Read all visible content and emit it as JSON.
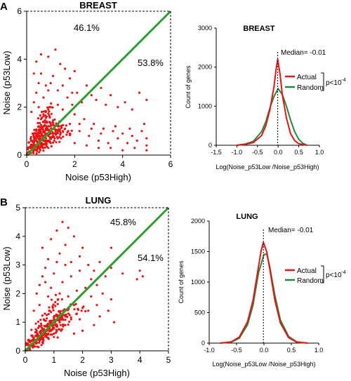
{
  "panels": {
    "A": {
      "letter": "A",
      "scatter": {
        "title": "BREAST",
        "pct_above": "46.1%",
        "pct_below": "53.8%"
      },
      "hist": {
        "median_label": "Median= -0.01",
        "p_value_text": "p<10",
        "p_value_exp": "-4"
      }
    },
    "B": {
      "letter": "B",
      "scatter": {
        "title": "LUNG",
        "pct_above": "45.8%",
        "pct_below": "54.1%"
      },
      "hist": {
        "median_label": "Median= -0.01",
        "p_value_text": "p<10",
        "p_value_exp": "-4"
      }
    }
  },
  "colors": {
    "points": "#ee1111",
    "diagonal": "#2aa02a",
    "actual": "#ee1111",
    "random": "#1f8a3a",
    "median_line": "#000000"
  },
  "chart_data": [
    {
      "type": "scatter",
      "title": "BREAST",
      "xlabel": "Noise (p53High)",
      "ylabel": "Noise (p53Low)",
      "xlim": [
        0,
        6
      ],
      "ylim": [
        0,
        6
      ],
      "xticks": [
        "0",
        "2",
        "4",
        "6"
      ],
      "yticks": [
        "0",
        "2",
        "4",
        "6"
      ],
      "annotations": [
        "46.1%",
        "53.8%"
      ],
      "reference_line": "y = x",
      "point_color": "#ee1111",
      "dense_cluster_points": [
        [
          0.05,
          0.1
        ],
        [
          0.1,
          0.15
        ],
        [
          0.15,
          0.1
        ],
        [
          0.2,
          0.25
        ],
        [
          0.25,
          0.3
        ],
        [
          0.3,
          0.2
        ],
        [
          0.35,
          0.4
        ],
        [
          0.4,
          0.35
        ],
        [
          0.45,
          0.5
        ],
        [
          0.5,
          0.45
        ],
        [
          0.55,
          0.6
        ],
        [
          0.6,
          0.5
        ],
        [
          0.65,
          0.7
        ],
        [
          0.7,
          0.6
        ],
        [
          0.75,
          0.8
        ],
        [
          0.8,
          0.7
        ],
        [
          0.85,
          0.9
        ],
        [
          0.9,
          0.8
        ],
        [
          0.95,
          1.0
        ],
        [
          1.0,
          0.9
        ],
        [
          0.3,
          0.5
        ],
        [
          0.5,
          0.8
        ],
        [
          0.6,
          0.9
        ],
        [
          0.4,
          0.7
        ],
        [
          0.7,
          1.0
        ],
        [
          0.8,
          1.1
        ],
        [
          0.9,
          1.2
        ],
        [
          1.0,
          1.3
        ],
        [
          1.1,
          1.1
        ],
        [
          1.2,
          1.0
        ],
        [
          0.2,
          0.4
        ],
        [
          0.5,
          0.3
        ],
        [
          0.6,
          0.4
        ],
        [
          0.7,
          0.45
        ],
        [
          0.8,
          0.5
        ],
        [
          0.9,
          0.6
        ],
        [
          1.0,
          0.7
        ],
        [
          1.1,
          0.8
        ],
        [
          1.2,
          0.9
        ],
        [
          1.3,
          1.0
        ],
        [
          0.35,
          0.6
        ],
        [
          0.45,
          0.75
        ],
        [
          0.55,
          0.95
        ],
        [
          0.65,
          1.1
        ],
        [
          0.75,
          1.25
        ],
        [
          0.85,
          1.35
        ],
        [
          0.4,
          0.2
        ],
        [
          0.55,
          0.25
        ],
        [
          0.7,
          0.3
        ],
        [
          0.85,
          0.35
        ],
        [
          1.0,
          0.5
        ],
        [
          1.15,
          0.6
        ],
        [
          1.3,
          0.7
        ],
        [
          1.4,
          0.85
        ],
        [
          1.5,
          1.0
        ],
        [
          0.25,
          0.55
        ],
        [
          0.3,
          0.75
        ],
        [
          0.5,
          1.05
        ],
        [
          0.6,
          1.25
        ],
        [
          0.7,
          1.4
        ],
        [
          0.8,
          1.55
        ],
        [
          0.95,
          1.6
        ],
        [
          1.1,
          1.45
        ],
        [
          1.25,
          1.3
        ],
        [
          1.35,
          1.2
        ],
        [
          1.45,
          1.15
        ],
        [
          1.6,
          1.1
        ],
        [
          1.7,
          0.95
        ],
        [
          1.8,
          0.9
        ],
        [
          0.15,
          0.3
        ],
        [
          0.2,
          0.6
        ],
        [
          0.3,
          0.9
        ],
        [
          0.4,
          1.0
        ],
        [
          0.5,
          1.2
        ],
        [
          0.6,
          1.5
        ],
        [
          0.7,
          1.7
        ],
        [
          0.8,
          1.8
        ],
        [
          0.9,
          1.9
        ],
        [
          1.0,
          2.0
        ]
      ],
      "spread_points": [
        [
          0.2,
          1.8
        ],
        [
          0.3,
          2.2
        ],
        [
          0.4,
          2.6
        ],
        [
          0.5,
          3.0
        ],
        [
          0.6,
          3.4
        ],
        [
          0.4,
          3.9
        ],
        [
          0.6,
          4.2
        ],
        [
          0.9,
          4.1
        ],
        [
          1.2,
          4.4
        ],
        [
          1.4,
          3.8
        ],
        [
          1.6,
          3.6
        ],
        [
          1.1,
          3.3
        ],
        [
          0.8,
          2.9
        ],
        [
          1.3,
          2.7
        ],
        [
          1.7,
          2.4
        ],
        [
          1.9,
          2.1
        ],
        [
          2.1,
          2.6
        ],
        [
          2.3,
          2.2
        ],
        [
          2.5,
          2.9
        ],
        [
          2.7,
          2.5
        ],
        [
          2.9,
          2.3
        ],
        [
          3.1,
          2.8
        ],
        [
          3.3,
          2.1
        ],
        [
          3.5,
          2.5
        ],
        [
          3.8,
          2.0
        ],
        [
          4.1,
          2.2
        ],
        [
          4.4,
          1.9
        ],
        [
          4.7,
          2.6
        ],
        [
          5.0,
          2.3
        ],
        [
          2.0,
          1.7
        ],
        [
          2.4,
          1.5
        ],
        [
          2.8,
          1.3
        ],
        [
          3.2,
          1.1
        ],
        [
          3.6,
          1.0
        ],
        [
          4.0,
          0.9
        ],
        [
          4.4,
          0.8
        ],
        [
          4.8,
          1.0
        ],
        [
          5.0,
          0.7
        ],
        [
          2.2,
          1.0
        ],
        [
          2.6,
          0.8
        ],
        [
          3.0,
          0.6
        ],
        [
          3.4,
          0.5
        ],
        [
          3.8,
          0.7
        ],
        [
          4.2,
          0.5
        ],
        [
          4.6,
          0.6
        ],
        [
          5.0,
          0.4
        ],
        [
          2.0,
          0.5
        ],
        [
          2.5,
          0.4
        ],
        [
          3.0,
          0.3
        ],
        [
          3.5,
          0.3
        ],
        [
          4.0,
          0.2
        ],
        [
          4.5,
          0.3
        ],
        [
          5.0,
          0.2
        ],
        [
          1.8,
          1.3
        ],
        [
          1.6,
          1.6
        ],
        [
          1.5,
          1.9
        ],
        [
          1.3,
          2.1
        ],
        [
          2.2,
          1.3
        ],
        [
          2.7,
          1.1
        ],
        [
          3.1,
          0.9
        ],
        [
          3.7,
          1.2
        ],
        [
          4.3,
          1.1
        ],
        [
          4.9,
          1.3
        ],
        [
          0.5,
          2.0
        ],
        [
          0.7,
          2.4
        ],
        [
          0.9,
          2.7
        ],
        [
          1.0,
          3.0
        ],
        [
          0.3,
          3.4
        ],
        [
          1.5,
          2.9
        ],
        [
          1.8,
          3.2
        ],
        [
          2.0,
          3.5
        ],
        [
          1.9,
          2.6
        ]
      ]
    },
    {
      "type": "line",
      "title": "BREAST",
      "xlabel": "Log(Noise_p53Low /Noise_p53High)",
      "ylabel": "Count of genes",
      "xlim": [
        -1.5,
        1.0
      ],
      "ylim": [
        0,
        3000
      ],
      "xticks": [
        "-1.5",
        "-1.0",
        "-0.5",
        "0.0",
        "0.5",
        "1.0"
      ],
      "yticks": [
        "0",
        "1000",
        "2000",
        "3000"
      ],
      "median": -0.01,
      "median_label": "Median= -0.01",
      "series": [
        {
          "name": "Actual",
          "color": "#ee1111",
          "x": [
            -1.0,
            -0.8,
            -0.6,
            -0.4,
            -0.3,
            -0.2,
            -0.1,
            -0.05,
            -0.01,
            0.05,
            0.1,
            0.2,
            0.3,
            0.4,
            0.5,
            0.7
          ],
          "y": [
            0,
            20,
            70,
            250,
            500,
            900,
            1500,
            1950,
            2200,
            1800,
            1300,
            700,
            300,
            120,
            40,
            0
          ]
        },
        {
          "name": "Random",
          "color": "#1f8a3a",
          "x": [
            -1.0,
            -0.8,
            -0.6,
            -0.4,
            -0.3,
            -0.2,
            -0.1,
            0.0,
            0.1,
            0.2,
            0.3,
            0.4,
            0.5,
            0.6,
            0.7
          ],
          "y": [
            0,
            30,
            100,
            350,
            600,
            950,
            1250,
            1450,
            1300,
            1000,
            650,
            350,
            150,
            50,
            0
          ]
        }
      ],
      "annotation": "p<10^-4"
    },
    {
      "type": "scatter",
      "title": "LUNG",
      "xlabel": "Noise (p53High)",
      "ylabel": "Noise (p53Low)",
      "xlim": [
        0,
        5
      ],
      "ylim": [
        0,
        5
      ],
      "xticks": [
        "0",
        "1",
        "2",
        "3",
        "4",
        "5"
      ],
      "yticks": [
        "0",
        "1",
        "2",
        "3",
        "4",
        "5"
      ],
      "annotations": [
        "45.8%",
        "54.1%"
      ],
      "reference_line": "y = x",
      "point_color": "#ee1111",
      "dense_cluster_points": [
        [
          0.05,
          0.05
        ],
        [
          0.1,
          0.1
        ],
        [
          0.15,
          0.12
        ],
        [
          0.2,
          0.18
        ],
        [
          0.25,
          0.22
        ],
        [
          0.3,
          0.28
        ],
        [
          0.35,
          0.3
        ],
        [
          0.4,
          0.38
        ],
        [
          0.45,
          0.4
        ],
        [
          0.5,
          0.48
        ],
        [
          0.55,
          0.5
        ],
        [
          0.6,
          0.58
        ],
        [
          0.65,
          0.6
        ],
        [
          0.7,
          0.68
        ],
        [
          0.75,
          0.7
        ],
        [
          0.8,
          0.78
        ],
        [
          0.85,
          0.8
        ],
        [
          0.9,
          0.88
        ],
        [
          0.95,
          0.9
        ],
        [
          1.0,
          0.98
        ],
        [
          1.05,
          1.0
        ],
        [
          1.1,
          1.08
        ],
        [
          1.15,
          1.1
        ],
        [
          1.2,
          1.15
        ],
        [
          1.25,
          1.2
        ],
        [
          1.3,
          1.25
        ],
        [
          0.2,
          0.35
        ],
        [
          0.3,
          0.45
        ],
        [
          0.4,
          0.55
        ],
        [
          0.5,
          0.65
        ],
        [
          0.6,
          0.75
        ],
        [
          0.7,
          0.85
        ],
        [
          0.8,
          0.95
        ],
        [
          0.9,
          1.05
        ],
        [
          1.0,
          1.15
        ],
        [
          1.1,
          1.25
        ],
        [
          1.2,
          1.35
        ],
        [
          0.3,
          0.2
        ],
        [
          0.4,
          0.28
        ],
        [
          0.5,
          0.35
        ],
        [
          0.6,
          0.45
        ],
        [
          0.7,
          0.5
        ],
        [
          0.8,
          0.6
        ],
        [
          0.9,
          0.7
        ],
        [
          1.0,
          0.8
        ],
        [
          1.1,
          0.9
        ],
        [
          1.2,
          1.0
        ],
        [
          1.3,
          1.1
        ],
        [
          1.4,
          1.2
        ],
        [
          1.5,
          1.3
        ],
        [
          0.25,
          0.5
        ],
        [
          0.35,
          0.65
        ],
        [
          0.45,
          0.8
        ],
        [
          0.55,
          0.95
        ],
        [
          0.65,
          1.1
        ],
        [
          0.75,
          1.25
        ],
        [
          0.85,
          1.4
        ],
        [
          0.95,
          1.55
        ],
        [
          1.05,
          1.7
        ],
        [
          1.15,
          1.8
        ],
        [
          0.6,
          0.3
        ],
        [
          0.8,
          0.45
        ],
        [
          1.0,
          0.6
        ],
        [
          1.2,
          0.75
        ],
        [
          1.4,
          0.9
        ],
        [
          1.6,
          1.1
        ],
        [
          1.8,
          1.3
        ],
        [
          2.0,
          1.5
        ],
        [
          1.5,
          1.5
        ],
        [
          1.7,
          1.6
        ],
        [
          0.15,
          0.3
        ],
        [
          0.1,
          0.2
        ]
      ],
      "spread_points": [
        [
          0.4,
          2.0
        ],
        [
          0.5,
          2.3
        ],
        [
          0.6,
          2.6
        ],
        [
          0.7,
          2.9
        ],
        [
          0.8,
          3.2
        ],
        [
          0.6,
          3.6
        ],
        [
          0.9,
          3.9
        ],
        [
          1.1,
          4.2
        ],
        [
          1.3,
          4.5
        ],
        [
          1.5,
          4.3
        ],
        [
          1.7,
          4.0
        ],
        [
          1.4,
          3.7
        ],
        [
          1.2,
          3.4
        ],
        [
          1.6,
          3.1
        ],
        [
          1.9,
          3.3
        ],
        [
          2.0,
          3.6
        ],
        [
          2.2,
          3.0
        ],
        [
          2.4,
          2.8
        ],
        [
          2.6,
          3.1
        ],
        [
          2.3,
          2.5
        ],
        [
          2.1,
          2.2
        ],
        [
          1.8,
          2.1
        ],
        [
          1.3,
          2.4
        ],
        [
          1.0,
          2.7
        ],
        [
          2.5,
          2.3
        ],
        [
          2.8,
          2.6
        ],
        [
          3.0,
          2.9
        ],
        [
          3.2,
          3.2
        ],
        [
          3.4,
          2.7
        ],
        [
          2.7,
          2.0
        ],
        [
          3.0,
          1.8
        ],
        [
          2.5,
          1.6
        ],
        [
          2.2,
          1.4
        ],
        [
          1.9,
          1.1
        ],
        [
          2.4,
          0.9
        ],
        [
          2.0,
          0.7
        ],
        [
          1.7,
          0.6
        ],
        [
          2.6,
          1.2
        ],
        [
          2.9,
          1.4
        ],
        [
          3.1,
          1.0
        ],
        [
          3.0,
          3.6
        ],
        [
          3.9,
          2.5
        ],
        [
          4.0,
          2.8
        ],
        [
          4.1,
          2.6
        ],
        [
          1.6,
          2.6
        ],
        [
          1.9,
          2.8
        ],
        [
          0.9,
          2.2
        ],
        [
          0.7,
          2.4
        ],
        [
          1.1,
          3.1
        ],
        [
          1.4,
          3.0
        ],
        [
          0.5,
          1.6
        ],
        [
          0.3,
          1.4
        ],
        [
          0.8,
          1.9
        ],
        [
          1.2,
          2.0
        ],
        [
          1.5,
          1.9
        ],
        [
          2.3,
          1.9
        ]
      ]
    },
    {
      "type": "line",
      "title": "LUNG",
      "xlabel": "Log(Noise_p53Low /Noise_p53High)",
      "ylabel": "Count of genes",
      "xlim": [
        -1.0,
        1.0
      ],
      "ylim": [
        0,
        2000
      ],
      "xticks": [
        "-1.0",
        "-0.5",
        "0.0",
        "0.5",
        "1.0"
      ],
      "yticks": [
        "0",
        "500",
        "1000",
        "1500",
        "2000"
      ],
      "median": -0.01,
      "median_label": "Median= -0.01",
      "series": [
        {
          "name": "Actual",
          "color": "#ee1111",
          "x": [
            -0.8,
            -0.6,
            -0.45,
            -0.3,
            -0.2,
            -0.1,
            -0.05,
            -0.01,
            0.05,
            0.1,
            0.2,
            0.3,
            0.45,
            0.6,
            0.8
          ],
          "y": [
            0,
            20,
            100,
            350,
            700,
            1250,
            1520,
            1650,
            1500,
            1250,
            700,
            330,
            90,
            15,
            0
          ]
        },
        {
          "name": "Random",
          "color": "#1f8a3a",
          "x": [
            -0.8,
            -0.6,
            -0.45,
            -0.3,
            -0.2,
            -0.1,
            0.0,
            0.05,
            0.1,
            0.2,
            0.3,
            0.45,
            0.6,
            0.8
          ],
          "y": [
            0,
            15,
            80,
            300,
            620,
            1150,
            1450,
            1460,
            1280,
            780,
            380,
            110,
            20,
            0
          ]
        }
      ],
      "annotation": "p<10^-4"
    }
  ]
}
